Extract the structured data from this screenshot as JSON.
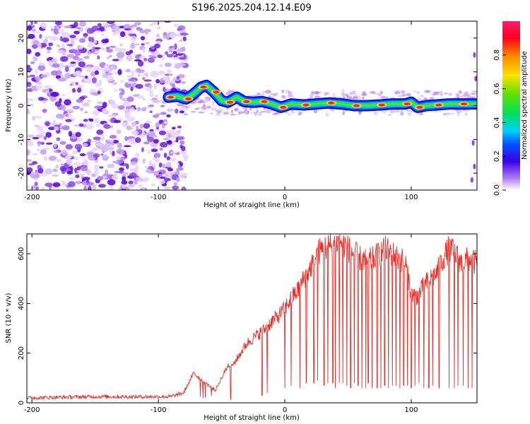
{
  "title": "S196.2025.204.12.14.E09",
  "colors": {
    "snr_line": "#e8302a",
    "track": "spectral-rainbow",
    "noise": "#9b4de0"
  },
  "chart_data": [
    {
      "type": "heatmap",
      "xlabel": "Height of straight line (km)",
      "ylabel": "Frequency (Hz)",
      "xlim": [
        -204,
        152
      ],
      "ylim": [
        -25,
        25
      ],
      "x_ticks": [
        -200,
        -100,
        0,
        100
      ],
      "x_tick_labels": [
        "-200",
        "-100",
        "0",
        "100"
      ],
      "y_ticks": [
        -20,
        -10,
        0,
        10,
        20
      ],
      "y_tick_labels": [
        "-20",
        "-10",
        "0",
        "10",
        "20"
      ],
      "grid": false,
      "colorbar": {
        "label": "Normalized spectral amplitude",
        "range": [
          0,
          1
        ],
        "ticks": [
          0.0,
          0.2,
          0.4,
          0.6,
          0.8
        ],
        "tick_labels": [
          "0.0",
          "0.2",
          "0.4",
          "0.6",
          "0.8"
        ]
      },
      "noise_region_x": [
        -204,
        -80
      ],
      "ridge": [
        {
          "x": -92,
          "y": 2.5
        },
        {
          "x": -85,
          "y": 2.8
        },
        {
          "x": -78,
          "y": 2.0
        },
        {
          "x": -72,
          "y": 3.5
        },
        {
          "x": -66,
          "y": 5.5
        },
        {
          "x": -62,
          "y": 6.0
        },
        {
          "x": -56,
          "y": 4.0
        },
        {
          "x": -50,
          "y": 1.5
        },
        {
          "x": -45,
          "y": 1.0
        },
        {
          "x": -38,
          "y": 2.5
        },
        {
          "x": -32,
          "y": 1.2
        },
        {
          "x": -25,
          "y": 1.0
        },
        {
          "x": -18,
          "y": 1.2
        },
        {
          "x": -10,
          "y": 0.5
        },
        {
          "x": -3,
          "y": -0.5
        },
        {
          "x": 5,
          "y": 0.5
        },
        {
          "x": 15,
          "y": 0.2
        },
        {
          "x": 25,
          "y": 0.5
        },
        {
          "x": 35,
          "y": 0.8
        },
        {
          "x": 45,
          "y": 0.5
        },
        {
          "x": 55,
          "y": 0.0
        },
        {
          "x": 65,
          "y": 0.0
        },
        {
          "x": 75,
          "y": 0.2
        },
        {
          "x": 85,
          "y": 0.5
        },
        {
          "x": 95,
          "y": 0.5
        },
        {
          "x": 100,
          "y": 1.0
        },
        {
          "x": 105,
          "y": -0.5
        },
        {
          "x": 112,
          "y": 0.0
        },
        {
          "x": 120,
          "y": 0.2
        },
        {
          "x": 130,
          "y": 0.5
        },
        {
          "x": 140,
          "y": 0.5
        },
        {
          "x": 152,
          "y": 0.5
        }
      ]
    },
    {
      "type": "line",
      "xlabel": "Height of straight line (km)",
      "ylabel": "SNR (10 * v/v)",
      "xlim": [
        -204,
        152
      ],
      "ylim": [
        0,
        680
      ],
      "x_ticks": [
        -200,
        -100,
        0,
        100
      ],
      "x_tick_labels": [
        "-200",
        "-100",
        "0",
        "100"
      ],
      "y_ticks": [
        0,
        200,
        400,
        600
      ],
      "y_tick_labels": [
        "0",
        "200",
        "400",
        "600"
      ],
      "grid": false,
      "series": [
        {
          "x": [
            -204,
            -180,
            -150,
            -120,
            -90,
            -80,
            -72,
            -66,
            -60,
            -55,
            -50,
            -45,
            -40,
            -35,
            -30,
            -25,
            -20,
            -15,
            -10,
            -5,
            0,
            5,
            10,
            15,
            20,
            25,
            30,
            35,
            40,
            45,
            50,
            55,
            60,
            65,
            70,
            75,
            80,
            85,
            90,
            95,
            100,
            105,
            110,
            115,
            120,
            125,
            130,
            135,
            140,
            145,
            152
          ],
          "values": [
            20,
            22,
            25,
            24,
            25,
            40,
            120,
            90,
            70,
            50,
            100,
            150,
            160,
            200,
            240,
            260,
            280,
            300,
            330,
            350,
            380,
            420,
            450,
            500,
            540,
            600,
            620,
            630,
            640,
            650,
            620,
            600,
            580,
            570,
            580,
            600,
            620,
            600,
            580,
            570,
            440,
            430,
            470,
            500,
            520,
            580,
            620,
            600,
            560,
            580,
            560
          ],
          "dips": [
            {
              "x": -18,
              "y": 30
            },
            {
              "x": -14,
              "y": 40
            },
            {
              "x": 0,
              "y": 60
            },
            {
              "x": 5,
              "y": 70
            },
            {
              "x": 12,
              "y": 60
            },
            {
              "x": 17,
              "y": 80
            },
            {
              "x": 23,
              "y": 80
            },
            {
              "x": 26,
              "y": 90
            },
            {
              "x": 31,
              "y": 70
            },
            {
              "x": 34,
              "y": 80
            },
            {
              "x": 38,
              "y": 80
            },
            {
              "x": 40,
              "y": 60
            },
            {
              "x": 43,
              "y": 80
            },
            {
              "x": 46,
              "y": 80
            },
            {
              "x": 49,
              "y": 70
            },
            {
              "x": 52,
              "y": 60
            },
            {
              "x": 55,
              "y": 80
            },
            {
              "x": 58,
              "y": 70
            },
            {
              "x": 61,
              "y": 60
            },
            {
              "x": 64,
              "y": 60
            },
            {
              "x": 66,
              "y": 80
            },
            {
              "x": 69,
              "y": 60
            },
            {
              "x": 73,
              "y": 60
            },
            {
              "x": 76,
              "y": 60
            },
            {
              "x": 79,
              "y": 70
            },
            {
              "x": 82,
              "y": 60
            },
            {
              "x": 85,
              "y": 70
            },
            {
              "x": 88,
              "y": 70
            },
            {
              "x": 91,
              "y": 60
            },
            {
              "x": 94,
              "y": 70
            },
            {
              "x": 97,
              "y": 70
            },
            {
              "x": 100,
              "y": 60
            },
            {
              "x": 103,
              "y": 70
            },
            {
              "x": 106,
              "y": 80
            },
            {
              "x": 110,
              "y": 60
            },
            {
              "x": 114,
              "y": 60
            },
            {
              "x": 117,
              "y": 70
            },
            {
              "x": 122,
              "y": 60
            },
            {
              "x": 130,
              "y": 60
            },
            {
              "x": 134,
              "y": 60
            },
            {
              "x": 137,
              "y": 70
            },
            {
              "x": 141,
              "y": 70
            },
            {
              "x": 145,
              "y": 60
            },
            {
              "x": 148,
              "y": 60
            }
          ]
        }
      ]
    }
  ]
}
